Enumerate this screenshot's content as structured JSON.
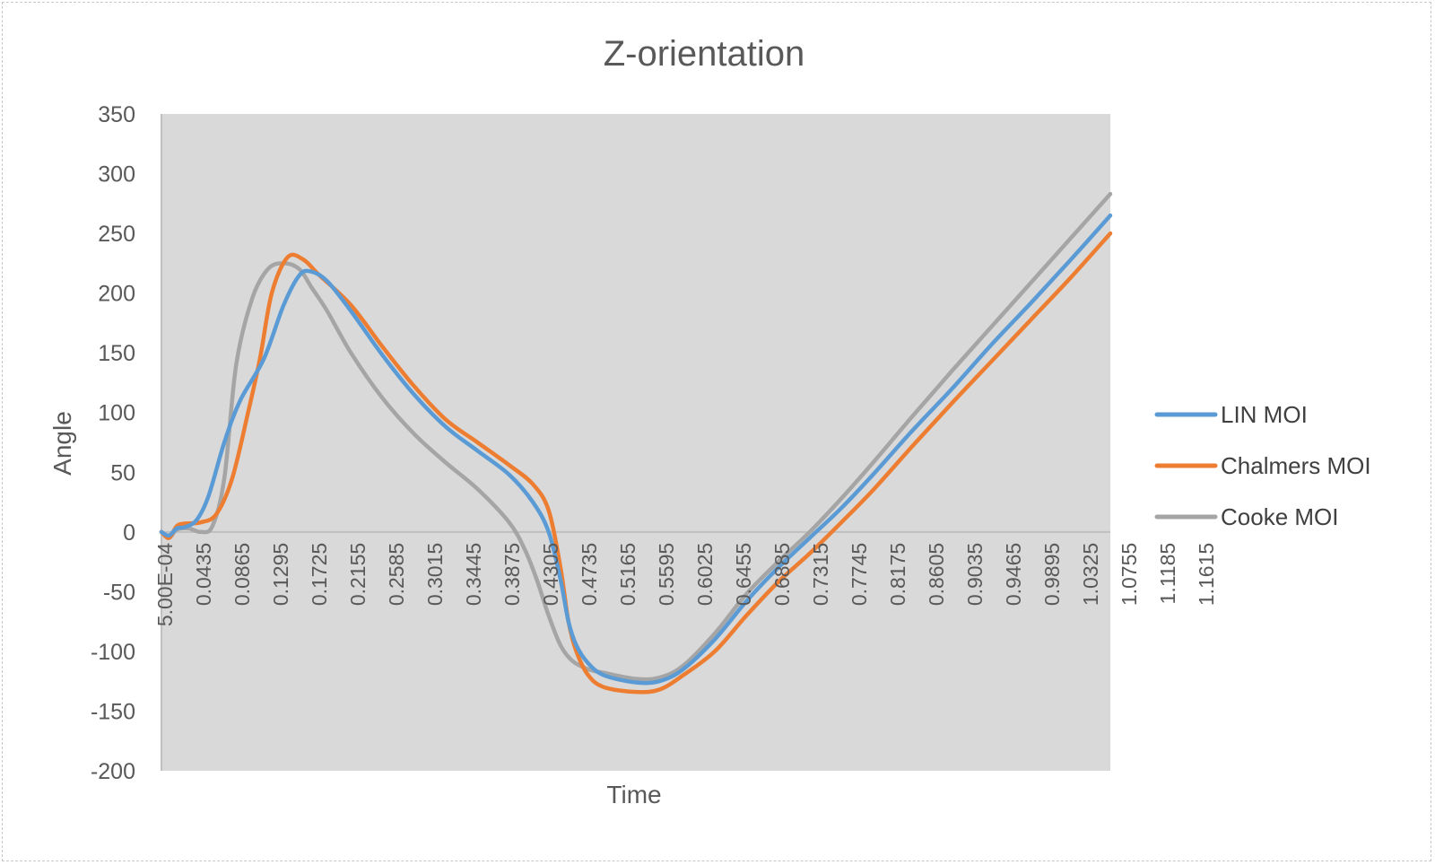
{
  "chart_data": {
    "type": "line",
    "title": "Z-orientation",
    "xlabel": "Time",
    "ylabel": "Angle",
    "ylim": [
      -200,
      350
    ],
    "yticks": [
      350,
      300,
      250,
      200,
      150,
      100,
      50,
      0,
      -50,
      -100,
      -150,
      -200
    ],
    "xlim": [
      0.0005,
      1.2
    ],
    "xtick_labels": [
      "5.00E-04",
      "0.0435",
      "0.0865",
      "0.1295",
      "0.1725",
      "0.2155",
      "0.2585",
      "0.3015",
      "0.3445",
      "0.3875",
      "0.4305",
      "0.4735",
      "0.5165",
      "0.5595",
      "0.6025",
      "0.6455",
      "0.6885",
      "0.7315",
      "0.7745",
      "0.8175",
      "0.8605",
      "0.9035",
      "0.9465",
      "0.9895",
      "1.0325",
      "1.0755",
      "1.1185",
      "1.1615"
    ],
    "grid": false,
    "legend_position": "right",
    "plot_area_color": "#d9d9d9",
    "series": [
      {
        "name": "LIN MOI",
        "color": "#5b9bd5",
        "x": [
          0.0005,
          0.01,
          0.02,
          0.03,
          0.045,
          0.06,
          0.08,
          0.1,
          0.13,
          0.155,
          0.175,
          0.19,
          0.21,
          0.24,
          0.28,
          0.32,
          0.36,
          0.4,
          0.44,
          0.47,
          0.49,
          0.505,
          0.515,
          0.525,
          0.54,
          0.56,
          0.6,
          0.63,
          0.66,
          0.7,
          0.74,
          0.78,
          0.82,
          0.86,
          0.9,
          0.95,
          1.0,
          1.05,
          1.1,
          1.15,
          1.2
        ],
        "y": [
          0,
          -3,
          3,
          4,
          10,
          30,
          75,
          110,
          145,
          190,
          215,
          218,
          210,
          185,
          148,
          115,
          88,
          68,
          48,
          25,
          0,
          -40,
          -75,
          -95,
          -110,
          -120,
          -126,
          -125,
          -115,
          -90,
          -58,
          -30,
          -5,
          20,
          48,
          85,
          120,
          157,
          192,
          228,
          265
        ]
      },
      {
        "name": "Chalmers MOI",
        "color": "#ed7d31",
        "x": [
          0.0005,
          0.01,
          0.02,
          0.03,
          0.05,
          0.07,
          0.09,
          0.11,
          0.125,
          0.14,
          0.16,
          0.18,
          0.2,
          0.24,
          0.28,
          0.32,
          0.36,
          0.4,
          0.44,
          0.47,
          0.49,
          0.505,
          0.515,
          0.525,
          0.54,
          0.56,
          0.6,
          0.63,
          0.66,
          0.7,
          0.74,
          0.78,
          0.82,
          0.86,
          0.9,
          0.95,
          1.0,
          1.05,
          1.1,
          1.15,
          1.2
        ],
        "y": [
          0,
          -5,
          5,
          7,
          8,
          15,
          45,
          100,
          145,
          200,
          230,
          228,
          215,
          190,
          155,
          122,
          94,
          75,
          56,
          40,
          18,
          -30,
          -75,
          -100,
          -120,
          -130,
          -134,
          -132,
          -120,
          -100,
          -70,
          -42,
          -18,
          8,
          35,
          72,
          108,
          143,
          178,
          213,
          250
        ]
      },
      {
        "name": "Cooke MOI",
        "color": "#a5a5a5",
        "x": [
          0.0005,
          0.01,
          0.02,
          0.035,
          0.05,
          0.065,
          0.08,
          0.095,
          0.115,
          0.135,
          0.155,
          0.175,
          0.19,
          0.21,
          0.24,
          0.28,
          0.32,
          0.36,
          0.4,
          0.44,
          0.46,
          0.475,
          0.49,
          0.505,
          0.52,
          0.54,
          0.56,
          0.6,
          0.63,
          0.66,
          0.7,
          0.74,
          0.78,
          0.82,
          0.86,
          0.9,
          0.95,
          1.0,
          1.05,
          1.1,
          1.15,
          1.2
        ],
        "y": [
          0,
          -5,
          2,
          3,
          0,
          5,
          45,
          140,
          195,
          220,
          225,
          220,
          205,
          185,
          150,
          112,
          82,
          58,
          36,
          8,
          -15,
          -40,
          -70,
          -95,
          -108,
          -115,
          -118,
          -123,
          -122,
          -112,
          -85,
          -52,
          -25,
          0,
          28,
          58,
          97,
          135,
          172,
          209,
          246,
          283
        ]
      }
    ]
  }
}
